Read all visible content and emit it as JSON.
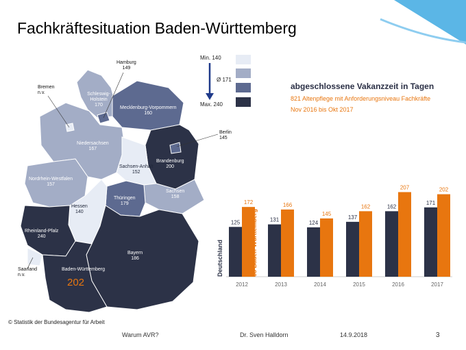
{
  "title": "Fachkräftesituation Baden-Württemberg",
  "map": {
    "states": [
      {
        "id": "hamburg",
        "label": "Hamburg",
        "value": "149"
      },
      {
        "id": "bremen",
        "label": "Bremen",
        "value": "n.v."
      },
      {
        "id": "schleswig-holstein",
        "label": "Schleswig-Holstein",
        "value": "170"
      },
      {
        "id": "mecklenburg-vorpommern",
        "label": "Mecklenburg-Vorpommern",
        "value": "160"
      },
      {
        "id": "niedersachsen",
        "label": "Niedersachsen",
        "value": "167"
      },
      {
        "id": "berlin",
        "label": "Berlin",
        "value": "145"
      },
      {
        "id": "brandenburg",
        "label": "Brandenburg",
        "value": "200"
      },
      {
        "id": "sachsen-anhalt",
        "label": "Sachsen-Anhalt",
        "value": "152"
      },
      {
        "id": "nordrhein-westfalen",
        "label": "Nordrhein-Westfalen",
        "value": "157"
      },
      {
        "id": "sachsen",
        "label": "Sachsen",
        "value": "158"
      },
      {
        "id": "thueringen",
        "label": "Thüringen",
        "value": "179"
      },
      {
        "id": "hessen",
        "label": "Hessen",
        "value": "140"
      },
      {
        "id": "rheinland-pfalz",
        "label": "Rheinland-Pfalz",
        "value": "240"
      },
      {
        "id": "saarland",
        "label": "Saarland",
        "value": "n.v."
      },
      {
        "id": "bayern",
        "label": "Bayern",
        "value": "186"
      },
      {
        "id": "baden-wuerttemberg",
        "label": "Baden-Württemberg",
        "value": "202"
      }
    ],
    "bw_highlight": "202"
  },
  "legend": {
    "min": "Min. 140",
    "avg": "Ø 171",
    "max": "Max. 240",
    "colors": [
      "#e7ecf5",
      "#a3adc6",
      "#5d6a90",
      "#2c3247"
    ]
  },
  "chart_heading": {
    "title": "abgeschlossene Vakanzzeit in Tagen",
    "line1": "821 Altenpflege mit Anforderungsniveau Fachkräfte",
    "line2": "Nov 2016 bis Okt 2017"
  },
  "chart_data": {
    "type": "bar",
    "categories": [
      "2012",
      "2013",
      "2014",
      "2015",
      "2016",
      "2017"
    ],
    "series": [
      {
        "name": "Deutschland",
        "values": [
          125,
          131,
          124,
          137,
          162,
          171
        ]
      },
      {
        "name": "08 Baden-Württemberg",
        "values": [
          172,
          166,
          145,
          162,
          207,
          202
        ]
      }
    ],
    "colors": {
      "Deutschland": "#2c3247",
      "08 Baden-Württemberg": "#e8760f"
    },
    "ylim": [
      0,
      220
    ],
    "legend_placement": "left, vertical"
  },
  "source": "© Statistik der Bundesagentur für Arbeit",
  "footer": {
    "left": "Warum AVR?",
    "center": "Dr. Sven Halldorn",
    "date": "14.9.2018",
    "page": "3"
  }
}
